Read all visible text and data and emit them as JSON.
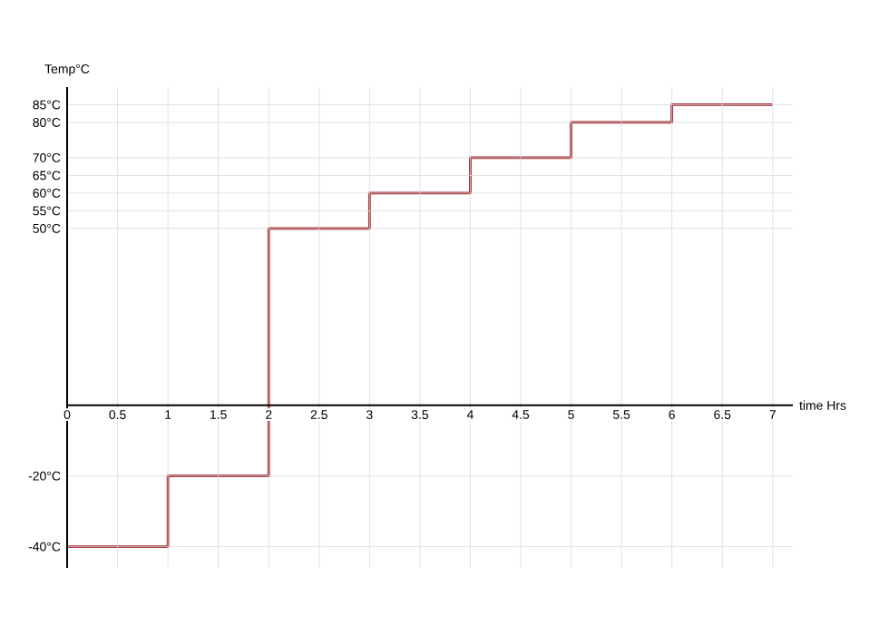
{
  "chart_data": {
    "type": "step",
    "xlabel": "time Hrs",
    "ylabel": "Temp°C",
    "x": [
      0,
      1,
      2,
      3,
      4,
      5,
      6,
      7
    ],
    "series": [
      {
        "color": "#a3222a",
        "values": [
          -40,
          -20,
          50,
          60,
          70,
          80,
          85,
          85
        ]
      }
    ],
    "xlim": [
      0,
      7.2
    ],
    "ylim": [
      -46,
      90
    ],
    "xticks": [
      0,
      0.5,
      1,
      1.5,
      2,
      2.5,
      3,
      3.5,
      4,
      4.5,
      5,
      5.5,
      6,
      6.5,
      7
    ],
    "yticks": [
      {
        "value": -40,
        "label": "-40°C"
      },
      {
        "value": -20,
        "label": "-20°C"
      },
      {
        "value": 50,
        "label": "50°C"
      },
      {
        "value": 55,
        "label": "55°C"
      },
      {
        "value": 60,
        "label": "60°C"
      },
      {
        "value": 65,
        "label": "65°C"
      },
      {
        "value": 70,
        "label": "70°C"
      },
      {
        "value": 80,
        "label": "80°C"
      },
      {
        "value": 85,
        "label": "85°C"
      }
    ],
    "grid": true,
    "line_style": "solid",
    "marker": "none"
  }
}
